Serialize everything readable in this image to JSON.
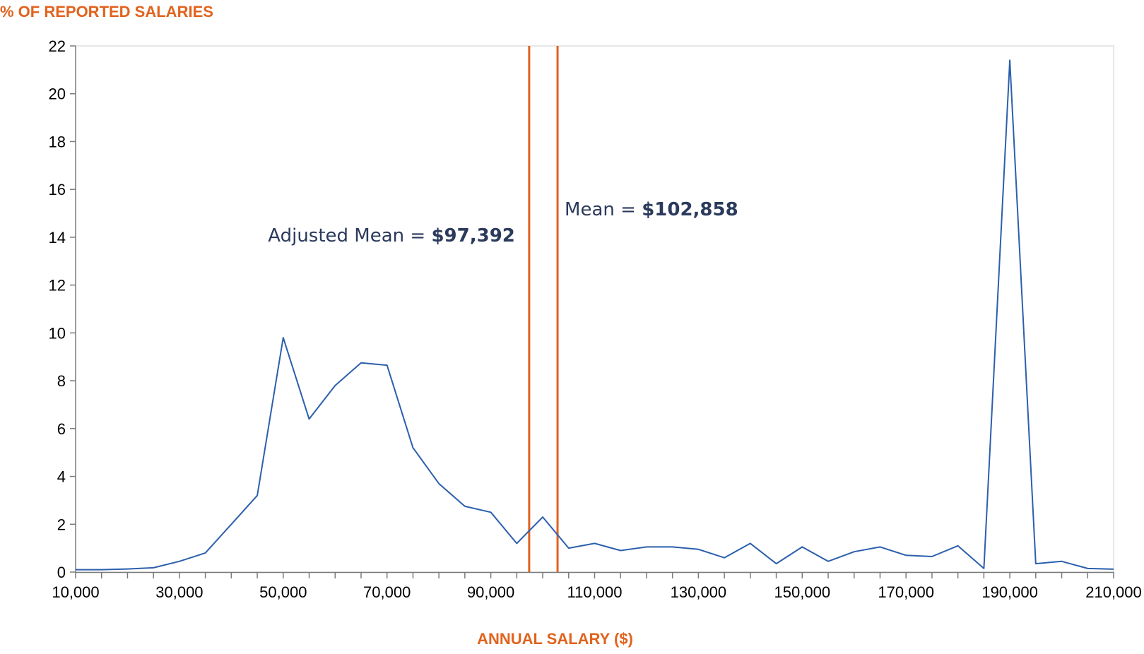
{
  "colors": {
    "accent": "#e1631e",
    "series": "#2c5fad",
    "annotation_text": "#2b3a5c",
    "axis": "#7a7a7a",
    "frame": "#cfcfcf"
  },
  "chart_data": {
    "type": "line",
    "ylabel": "% OF REPORTED SALARIES",
    "xlabel": "ANNUAL SALARY ($)",
    "xlim": [
      10000,
      210000
    ],
    "ylim": [
      0,
      22
    ],
    "x_ticks": [
      10000,
      30000,
      50000,
      70000,
      90000,
      110000,
      130000,
      150000,
      170000,
      190000,
      210000
    ],
    "x_tick_labels": [
      "10,000",
      "30,000",
      "50,000",
      "70,000",
      "90,000",
      "110,000",
      "130,000",
      "150,000",
      "170,000",
      "190,000",
      "210,000"
    ],
    "y_ticks": [
      0,
      2,
      4,
      6,
      8,
      10,
      12,
      14,
      16,
      18,
      20,
      22
    ],
    "y_tick_labels": [
      "0",
      "2",
      "4",
      "6",
      "8",
      "10",
      "12",
      "14",
      "16",
      "18",
      "20",
      "22"
    ],
    "grid": false,
    "series": [
      {
        "x": [
          10000,
          15000,
          20000,
          25000,
          30000,
          35000,
          40000,
          45000,
          50000,
          55000,
          60000,
          65000,
          70000,
          75000,
          80000,
          85000,
          90000,
          95000,
          100000,
          105000,
          110000,
          115000,
          120000,
          125000,
          130000,
          135000,
          140000,
          145000,
          150000,
          155000,
          160000,
          165000,
          170000,
          175000,
          180000,
          185000,
          190000,
          195000,
          200000,
          205000,
          210000
        ],
        "y": [
          0.1,
          0.1,
          0.13,
          0.18,
          0.45,
          0.8,
          2.0,
          3.2,
          9.8,
          6.4,
          7.8,
          8.75,
          8.65,
          5.2,
          3.7,
          2.75,
          2.5,
          1.2,
          2.3,
          1.0,
          1.2,
          0.9,
          1.05,
          1.05,
          0.95,
          0.6,
          1.2,
          0.35,
          1.05,
          0.45,
          0.85,
          1.05,
          0.7,
          0.65,
          1.1,
          0.15,
          21.4,
          0.35,
          0.45,
          0.15,
          0.12
        ]
      }
    ],
    "reference_lines": [
      {
        "x": 97392,
        "label": "Adjusted Mean = ",
        "value_label": "$97,392"
      },
      {
        "x": 102858,
        "label": "Mean = ",
        "value_label": "$102,858"
      }
    ]
  }
}
